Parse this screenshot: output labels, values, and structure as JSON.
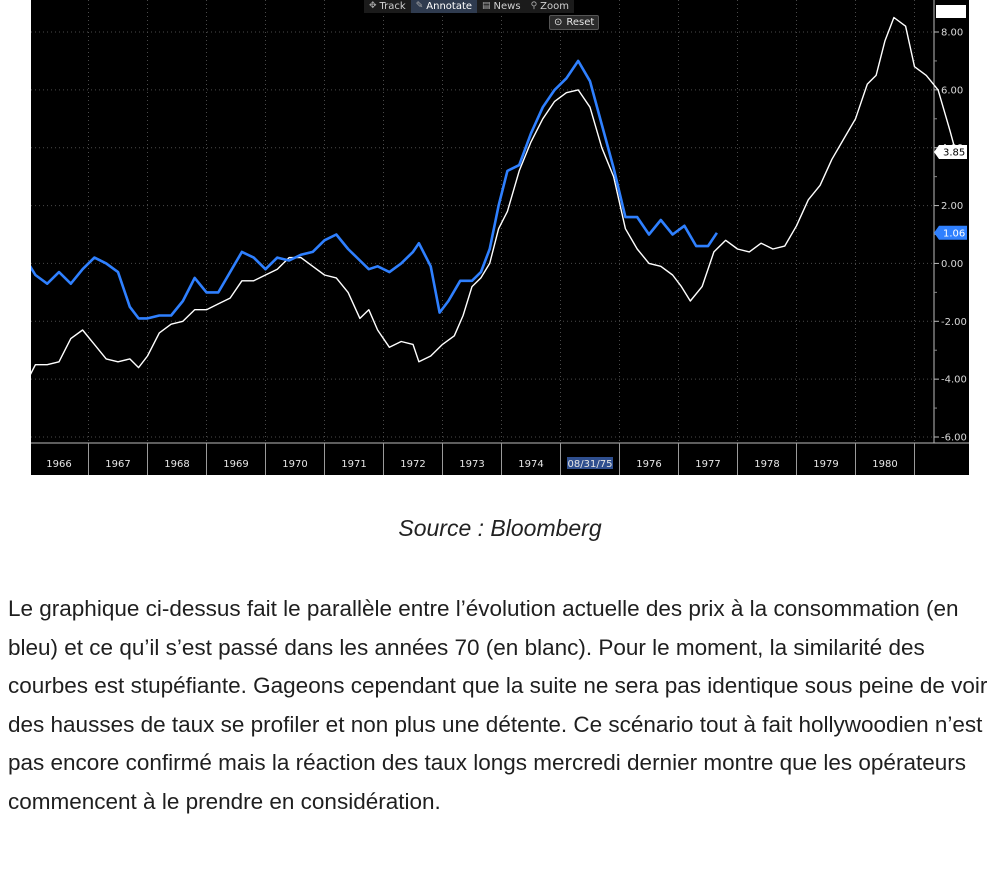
{
  "toolbar": {
    "track_label": "Track",
    "annotate_label": "Annotate",
    "news_label": "News",
    "zoom_label": "Zoom",
    "reset_label": "Reset"
  },
  "chart_data": {
    "type": "line",
    "x_categories": [
      "1966",
      "1967",
      "1968",
      "1969",
      "1970",
      "1971",
      "1972",
      "1973",
      "1974",
      "08/31/75",
      "1976",
      "1977",
      "1978",
      "1979",
      "1980"
    ],
    "highlighted_x_label": "08/31/75",
    "yticks": [
      "8.00",
      "6.00",
      "4.00",
      "2.00",
      "0.00",
      "-2.00",
      "-4.00",
      "-6.00"
    ],
    "ylim": [
      -6.2,
      8.9
    ],
    "grid": true,
    "series": [
      {
        "color": "#ffffff",
        "last_value_label": "3.85",
        "points": [
          [
            1965.45,
            -4.1
          ],
          [
            1965.6,
            -3.5
          ],
          [
            1965.8,
            -3.5
          ],
          [
            1966.0,
            -3.4
          ],
          [
            1966.2,
            -2.6
          ],
          [
            1966.4,
            -2.3
          ],
          [
            1966.6,
            -2.8
          ],
          [
            1966.8,
            -3.3
          ],
          [
            1967.0,
            -3.4
          ],
          [
            1967.2,
            -3.3
          ],
          [
            1967.35,
            -3.6
          ],
          [
            1967.5,
            -3.2
          ],
          [
            1967.7,
            -2.4
          ],
          [
            1967.9,
            -2.1
          ],
          [
            1968.1,
            -2.0
          ],
          [
            1968.3,
            -1.6
          ],
          [
            1968.5,
            -1.6
          ],
          [
            1968.7,
            -1.4
          ],
          [
            1968.9,
            -1.2
          ],
          [
            1969.1,
            -0.6
          ],
          [
            1969.3,
            -0.6
          ],
          [
            1969.5,
            -0.4
          ],
          [
            1969.7,
            -0.2
          ],
          [
            1969.9,
            0.2
          ],
          [
            1970.1,
            0.2
          ],
          [
            1970.3,
            -0.1
          ],
          [
            1970.5,
            -0.4
          ],
          [
            1970.7,
            -0.5
          ],
          [
            1970.9,
            -1.0
          ],
          [
            1971.1,
            -1.9
          ],
          [
            1971.25,
            -1.6
          ],
          [
            1971.4,
            -2.3
          ],
          [
            1971.6,
            -2.9
          ],
          [
            1971.8,
            -2.7
          ],
          [
            1972.0,
            -2.8
          ],
          [
            1972.1,
            -3.4
          ],
          [
            1972.3,
            -3.2
          ],
          [
            1972.5,
            -2.8
          ],
          [
            1972.7,
            -2.5
          ],
          [
            1972.85,
            -1.8
          ],
          [
            1973.0,
            -0.8
          ],
          [
            1973.15,
            -0.5
          ],
          [
            1973.3,
            0.0
          ],
          [
            1973.45,
            1.2
          ],
          [
            1973.6,
            1.8
          ],
          [
            1973.8,
            3.2
          ],
          [
            1974.0,
            4.2
          ],
          [
            1974.2,
            5.0
          ],
          [
            1974.4,
            5.6
          ],
          [
            1974.6,
            5.9
          ],
          [
            1974.8,
            6.0
          ],
          [
            1975.0,
            5.4
          ],
          [
            1975.2,
            4.0
          ],
          [
            1975.4,
            3.0
          ],
          [
            1975.6,
            1.2
          ],
          [
            1975.8,
            0.5
          ],
          [
            1976.0,
            0.0
          ],
          [
            1976.2,
            -0.1
          ],
          [
            1976.4,
            -0.4
          ],
          [
            1976.55,
            -0.8
          ],
          [
            1976.7,
            -1.3
          ],
          [
            1976.9,
            -0.8
          ],
          [
            1977.1,
            0.4
          ],
          [
            1977.3,
            0.8
          ],
          [
            1977.5,
            0.5
          ],
          [
            1977.7,
            0.4
          ],
          [
            1977.9,
            0.7
          ],
          [
            1978.1,
            0.5
          ],
          [
            1978.3,
            0.6
          ],
          [
            1978.5,
            1.3
          ],
          [
            1978.7,
            2.2
          ],
          [
            1978.9,
            2.7
          ],
          [
            1979.1,
            3.6
          ],
          [
            1979.3,
            4.3
          ],
          [
            1979.5,
            5.0
          ],
          [
            1979.7,
            6.2
          ],
          [
            1979.85,
            6.5
          ],
          [
            1980.0,
            7.7
          ],
          [
            1980.15,
            8.5
          ],
          [
            1980.35,
            8.2
          ],
          [
            1980.5,
            6.8
          ],
          [
            1980.7,
            6.5
          ],
          [
            1980.9,
            6.0
          ],
          [
            1981.1,
            4.6
          ],
          [
            1981.2,
            3.85
          ]
        ]
      },
      {
        "color": "#2f80ff",
        "last_value_label": "1.06",
        "points": [
          [
            1965.45,
            0.1
          ],
          [
            1965.6,
            -0.4
          ],
          [
            1965.8,
            -0.7
          ],
          [
            1966.0,
            -0.3
          ],
          [
            1966.2,
            -0.7
          ],
          [
            1966.4,
            -0.2
          ],
          [
            1966.6,
            0.2
          ],
          [
            1966.8,
            0.0
          ],
          [
            1967.0,
            -0.3
          ],
          [
            1967.2,
            -1.5
          ],
          [
            1967.35,
            -1.9
          ],
          [
            1967.5,
            -1.9
          ],
          [
            1967.7,
            -1.8
          ],
          [
            1967.9,
            -1.8
          ],
          [
            1968.1,
            -1.3
          ],
          [
            1968.3,
            -0.5
          ],
          [
            1968.5,
            -1.0
          ],
          [
            1968.7,
            -1.0
          ],
          [
            1968.9,
            -0.3
          ],
          [
            1969.1,
            0.4
          ],
          [
            1969.3,
            0.2
          ],
          [
            1969.5,
            -0.2
          ],
          [
            1969.7,
            0.2
          ],
          [
            1969.9,
            0.1
          ],
          [
            1970.1,
            0.3
          ],
          [
            1970.3,
            0.4
          ],
          [
            1970.5,
            0.8
          ],
          [
            1970.7,
            1.0
          ],
          [
            1970.9,
            0.5
          ],
          [
            1971.1,
            0.1
          ],
          [
            1971.25,
            -0.2
          ],
          [
            1971.4,
            -0.1
          ],
          [
            1971.6,
            -0.3
          ],
          [
            1971.8,
            0.0
          ],
          [
            1972.0,
            0.4
          ],
          [
            1972.1,
            0.7
          ],
          [
            1972.3,
            -0.1
          ],
          [
            1972.45,
            -1.7
          ],
          [
            1972.6,
            -1.3
          ],
          [
            1972.8,
            -0.6
          ],
          [
            1973.0,
            -0.6
          ],
          [
            1973.15,
            -0.3
          ],
          [
            1973.3,
            0.5
          ],
          [
            1973.45,
            2.0
          ],
          [
            1973.6,
            3.2
          ],
          [
            1973.8,
            3.4
          ],
          [
            1974.0,
            4.5
          ],
          [
            1974.2,
            5.4
          ],
          [
            1974.4,
            6.0
          ],
          [
            1974.6,
            6.4
          ],
          [
            1974.8,
            7.0
          ],
          [
            1975.0,
            6.3
          ],
          [
            1975.2,
            4.8
          ],
          [
            1975.4,
            3.3
          ],
          [
            1975.6,
            1.6
          ],
          [
            1975.8,
            1.6
          ],
          [
            1976.0,
            1.0
          ],
          [
            1976.2,
            1.5
          ],
          [
            1976.4,
            1.0
          ],
          [
            1976.6,
            1.3
          ],
          [
            1976.8,
            0.6
          ],
          [
            1977.0,
            0.6
          ],
          [
            1977.15,
            1.06
          ]
        ]
      }
    ]
  },
  "caption": "Source : Bloomberg",
  "paragraph": "Le graphique ci-dessus fait le parallèle entre l’évolution actuelle des prix à la consommation (en bleu) et ce qu’il s’est passé dans les années 70 (en blanc). Pour le moment, la similarité des courbes est stupéfiante. Gageons cependant que la suite ne sera pas identique sous peine de voir des hausses de taux se profiler et non plus une détente. Ce scénario tout à fait hollywoodien n’est pas encore confirmé mais la réaction des taux longs mercredi dernier montre que les opérateurs commencent à le prendre en considération."
}
